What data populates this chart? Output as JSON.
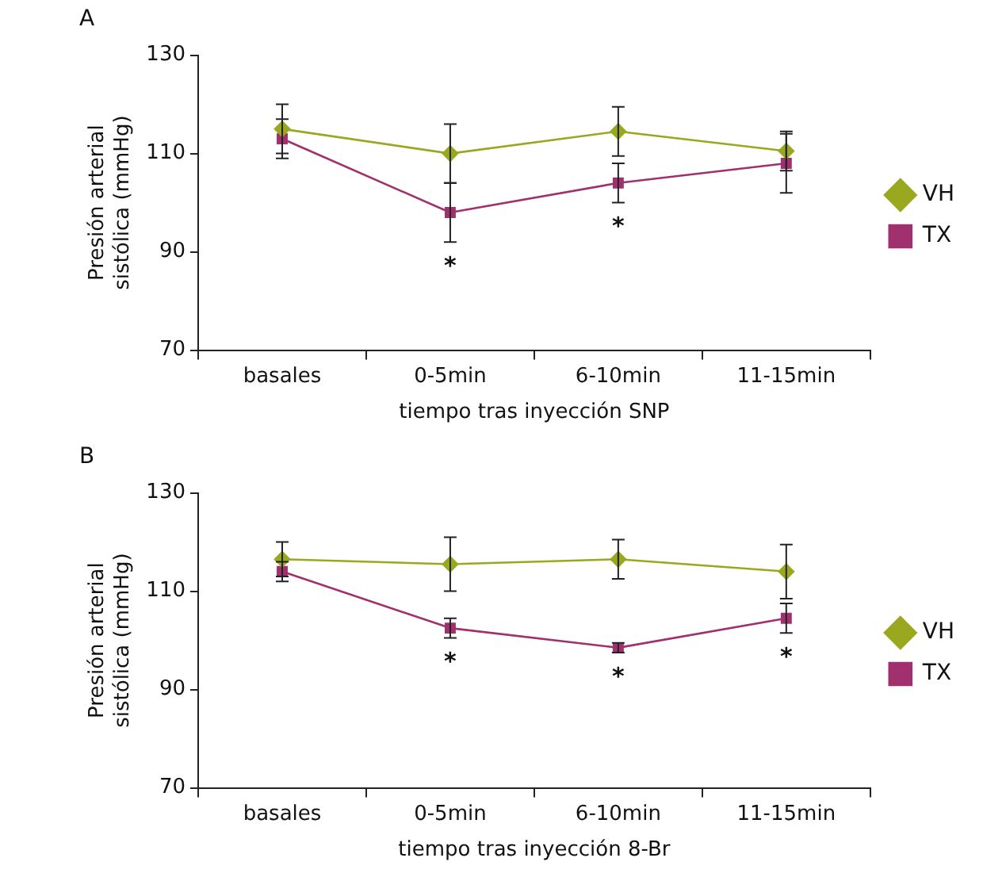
{
  "chart_data": [
    {
      "type": "line",
      "title": "A",
      "xlabel": "tiempo tras inyección SNP",
      "ylabel": "Presión arterial\nsistólica (mmHg)",
      "categories": [
        "basales",
        "0-5min",
        "6-10min",
        "11-15min"
      ],
      "series": [
        {
          "name": "VH",
          "color": "#99a81e",
          "marker": "diamond",
          "values": [
            115,
            110,
            114.5,
            110.5
          ],
          "errors": [
            5,
            6,
            5,
            4
          ]
        },
        {
          "name": "TX",
          "color": "#a0306e",
          "marker": "square",
          "values": [
            113,
            98,
            104,
            108
          ],
          "errors": [
            4,
            6,
            4,
            6
          ]
        }
      ],
      "ylim": [
        70,
        130
      ],
      "yticks": [
        70,
        90,
        110,
        130
      ],
      "grid": false,
      "legend": "right",
      "annotations": [
        "*",
        "*"
      ]
    },
    {
      "type": "line",
      "title": "B",
      "xlabel": "tiempo tras inyección 8-Br",
      "ylabel": "Presión arterial\nsistólica (mmHg)",
      "categories": [
        "basales",
        "0-5min",
        "6-10min",
        "11-15min"
      ],
      "series": [
        {
          "name": "VH",
          "color": "#99a81e",
          "marker": "diamond",
          "values": [
            116.5,
            115.5,
            116.5,
            114
          ],
          "errors": [
            3.5,
            5.5,
            4,
            5.5
          ]
        },
        {
          "name": "TX",
          "color": "#a0306e",
          "marker": "square",
          "values": [
            114,
            102.5,
            98.5,
            104.5
          ],
          "errors": [
            2,
            2,
            1,
            3
          ]
        }
      ],
      "ylim": [
        70,
        130
      ],
      "yticks": [
        70,
        90,
        110,
        130
      ],
      "grid": false,
      "legend": "right",
      "annotations": [
        "*",
        "*",
        "*"
      ]
    }
  ]
}
